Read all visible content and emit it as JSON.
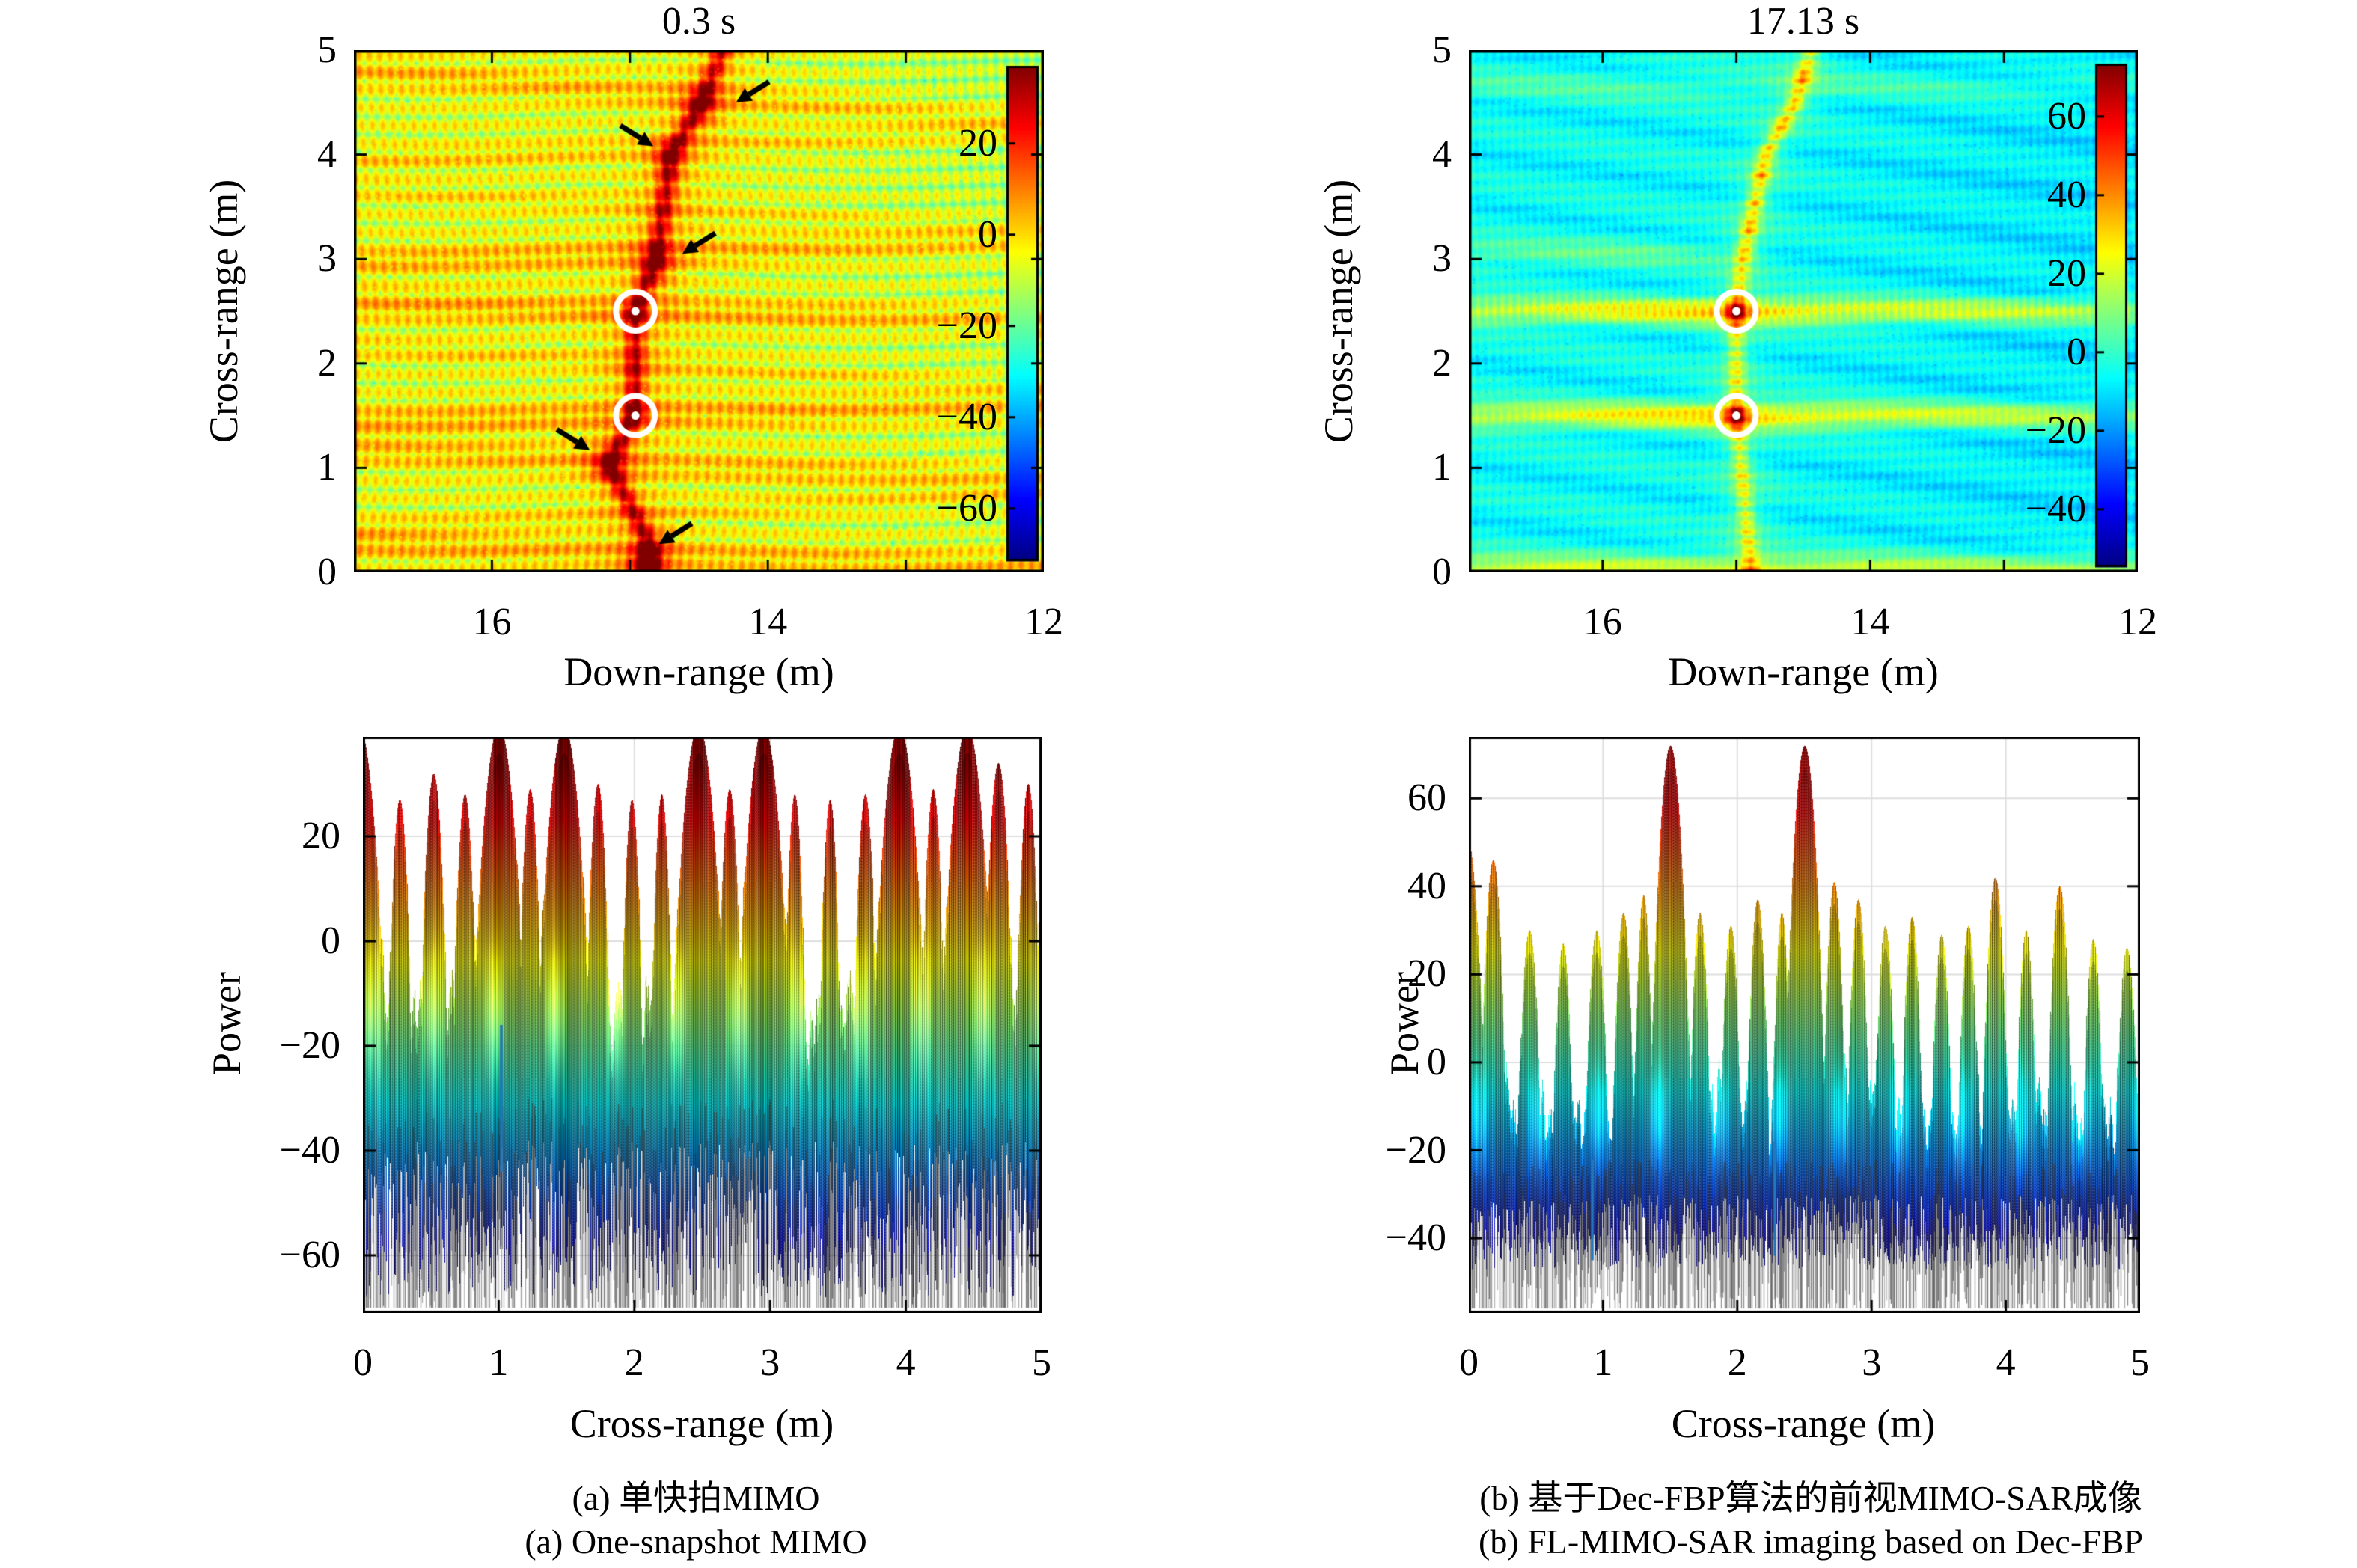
{
  "figure": {
    "background": "#ffffff",
    "colormap": "jet",
    "captions": {
      "a_zh": "(a) 单快拍MIMO",
      "a_en": "(a) One-snapshot MIMO",
      "b_zh": "(b) 基于Dec-FBP算法的前视MIMO-SAR成像",
      "b_en": "(b) FL-MIMO-SAR imaging based on Dec-FBP"
    }
  },
  "chart_data": [
    {
      "id": "sar_image_one_snapshot",
      "type": "heatmap",
      "title": "0.3 s",
      "xlabel": "Down-range (m)",
      "ylabel": "Cross-range (m)",
      "xlim": [
        17,
        12
      ],
      "ylim": [
        0,
        5
      ],
      "xticks": {
        "values": [
          16,
          14,
          12
        ],
        "labels": [
          "16",
          "14",
          "12"
        ],
        "minor": [
          15,
          13
        ]
      },
      "yticks": {
        "values": [
          5,
          4,
          3,
          2,
          1,
          0
        ],
        "labels": [
          "5",
          "4",
          "3",
          "2",
          "1",
          "0"
        ]
      },
      "colorbar": {
        "values": [
          20,
          0,
          -20,
          -40,
          -60
        ],
        "labels": [
          "20",
          "0",
          "−20",
          "−40",
          "−60"
        ],
        "vmax": 37,
        "vmin": -71.5
      },
      "targets": [
        {
          "down_range": 14.96,
          "cross_range": 2.5
        },
        {
          "down_range": 14.96,
          "cross_range": 1.5
        }
      ],
      "arrows": [
        {
          "down_range": 14.23,
          "cross_range": 4.5,
          "dir": "sw"
        },
        {
          "down_range": 14.83,
          "cross_range": 4.08,
          "dir": "se"
        },
        {
          "down_range": 14.62,
          "cross_range": 3.05,
          "dir": "sw"
        },
        {
          "down_range": 15.29,
          "cross_range": 1.17,
          "dir": "se"
        },
        {
          "down_range": 14.79,
          "cross_range": 0.27,
          "dir": "sw"
        }
      ],
      "streak_path": [
        [
          0,
          14.85
        ],
        [
          0.3,
          14.87
        ],
        [
          1.03,
          15.15
        ],
        [
          1.5,
          14.97
        ],
        [
          2.5,
          14.96
        ],
        [
          3.0,
          14.81
        ],
        [
          4.0,
          14.7
        ],
        [
          4.5,
          14.48
        ],
        [
          5.0,
          14.33
        ]
      ],
      "hot_blobs": [
        [
          14.48,
          4.46,
          15
        ],
        [
          14.71,
          3.99,
          14
        ],
        [
          14.81,
          2.94,
          14
        ],
        [
          15.15,
          1.03,
          14
        ],
        [
          14.86,
          0.18,
          13
        ],
        [
          14.9,
          0.02,
          15
        ]
      ],
      "sidelobe_rows": [
        [
          4.6,
          9,
          0.1
        ],
        [
          4.05,
          7,
          -0.06
        ],
        [
          3.5,
          5,
          0.08
        ],
        [
          3.05,
          10,
          -0.04
        ],
        [
          2.5,
          11,
          0.03
        ],
        [
          2.0,
          6,
          0.08
        ],
        [
          1.5,
          11,
          -0.03
        ],
        [
          1.05,
          9,
          0.06
        ],
        [
          0.55,
          6,
          -0.07
        ],
        [
          0.18,
          10,
          0.04
        ]
      ]
    },
    {
      "id": "sar_image_dec_fbp",
      "type": "heatmap",
      "title": "17.13 s",
      "xlabel": "Down-range (m)",
      "ylabel": "Cross-range (m)",
      "xlim": [
        17,
        12
      ],
      "ylim": [
        0,
        5
      ],
      "xticks": {
        "values": [
          16,
          14,
          12
        ],
        "labels": [
          "16",
          "14",
          "12"
        ],
        "minor": [
          15,
          13
        ]
      },
      "yticks": {
        "values": [
          5,
          4,
          3,
          2,
          1,
          0
        ],
        "labels": [
          "5",
          "4",
          "3",
          "2",
          "1",
          "0"
        ]
      },
      "colorbar": {
        "values": [
          60,
          40,
          20,
          0,
          -20,
          -40
        ],
        "labels": [
          "60",
          "40",
          "20",
          "0",
          "−20",
          "−40"
        ],
        "vmax": 73.5,
        "vmin": -54.7
      },
      "targets": [
        {
          "down_range": 15.0,
          "cross_range": 2.5
        },
        {
          "down_range": 15.0,
          "cross_range": 1.5
        }
      ],
      "streak_path": [
        [
          0,
          14.89
        ],
        [
          1.5,
          15.0
        ],
        [
          2.5,
          15.0
        ],
        [
          3.0,
          14.95
        ],
        [
          4.0,
          14.78
        ],
        [
          4.5,
          14.56
        ],
        [
          5.0,
          14.44
        ]
      ],
      "target_rows": [
        [
          2.5,
          40
        ],
        [
          1.5,
          40
        ]
      ],
      "bottom_row": [
        0.0,
        26
      ],
      "faint_rows": [
        [
          4.65,
          7,
          0
        ],
        [
          3.05,
          10,
          1
        ]
      ],
      "streak_dots": [
        4.75,
        4.5,
        4.27,
        4.03,
        3.8,
        3.55,
        3.3,
        3.07
      ]
    },
    {
      "id": "power_profile_one_snapshot",
      "type": "area",
      "xlabel": "Cross-range (m)",
      "ylabel": "Power",
      "xlim": [
        0,
        5
      ],
      "ylim": [
        -71,
        39
      ],
      "xticks": {
        "values": [
          0,
          1,
          2,
          3,
          4,
          5
        ],
        "labels": [
          "0",
          "1",
          "2",
          "3",
          "4",
          "5"
        ]
      },
      "yticks": {
        "values": [
          20,
          0,
          -20,
          -40,
          -60
        ],
        "labels": [
          "20",
          "0",
          "−20",
          "−40",
          "−60"
        ]
      },
      "grid": true,
      "color_scale": {
        "vmax": 37,
        "vmin": -71.5
      },
      "envelope_base": -14,
      "noise_floor": [
        -38,
        -68
      ],
      "blue_spikes": [
        [
          1.02,
          -16,
          -44
        ]
      ],
      "peaks": [
        [
          -0.03,
          41,
          0.2
        ],
        [
          0.27,
          27,
          0.1
        ],
        [
          0.52,
          32,
          0.11
        ],
        [
          0.75,
          28,
          0.1
        ],
        [
          1.0,
          41,
          0.2
        ],
        [
          1.23,
          29,
          0.1
        ],
        [
          1.48,
          41,
          0.2
        ],
        [
          1.73,
          30,
          0.1
        ],
        [
          1.98,
          27,
          0.09
        ],
        [
          2.2,
          28,
          0.09
        ],
        [
          2.47,
          41,
          0.2
        ],
        [
          2.7,
          29,
          0.1
        ],
        [
          2.95,
          41,
          0.2
        ],
        [
          3.18,
          28,
          0.09
        ],
        [
          3.44,
          27,
          0.09
        ],
        [
          3.7,
          28,
          0.1
        ],
        [
          3.95,
          41,
          0.2
        ],
        [
          4.2,
          29,
          0.1
        ],
        [
          4.45,
          41,
          0.2
        ],
        [
          4.68,
          34,
          0.12
        ],
        [
          4.9,
          30,
          0.1
        ],
        [
          5.04,
          28,
          0.1
        ]
      ]
    },
    {
      "id": "power_profile_dec_fbp",
      "type": "area",
      "xlabel": "Cross-range (m)",
      "ylabel": "Power",
      "xlim": [
        0,
        5
      ],
      "ylim": [
        -57,
        74
      ],
      "xticks": {
        "values": [
          0,
          1,
          2,
          3,
          4,
          5
        ],
        "labels": [
          "0",
          "1",
          "2",
          "3",
          "4",
          "5"
        ]
      },
      "yticks": {
        "values": [
          60,
          40,
          20,
          0,
          -20,
          -40
        ],
        "labels": [
          "60",
          "40",
          "20",
          "0",
          "−20",
          "−40"
        ]
      },
      "grid": true,
      "color_scale": {
        "vmax": 73.5,
        "vmin": -54.7
      },
      "envelope_base": -10,
      "noise_floor": [
        -30,
        -47
      ],
      "blue_spikes": [
        [
          0.92,
          -22,
          -45
        ],
        [
          2.28,
          -18,
          -44
        ]
      ],
      "peaks": [
        [
          -0.02,
          52,
          0.14
        ],
        [
          0.18,
          46,
          0.1
        ],
        [
          0.45,
          30,
          0.1
        ],
        [
          0.7,
          27,
          0.09
        ],
        [
          0.95,
          30,
          0.1
        ],
        [
          1.15,
          34,
          0.09
        ],
        [
          1.3,
          38,
          0.08
        ],
        [
          1.5,
          72,
          0.13
        ],
        [
          1.72,
          34,
          0.09
        ],
        [
          1.95,
          31,
          0.09
        ],
        [
          2.15,
          37,
          0.09
        ],
        [
          2.33,
          34,
          0.08
        ],
        [
          2.5,
          72,
          0.13
        ],
        [
          2.72,
          41,
          0.09
        ],
        [
          2.9,
          37,
          0.09
        ],
        [
          3.1,
          31,
          0.09
        ],
        [
          3.3,
          33,
          0.09
        ],
        [
          3.52,
          29,
          0.09
        ],
        [
          3.72,
          31,
          0.09
        ],
        [
          3.92,
          42,
          0.1
        ],
        [
          4.15,
          30,
          0.09
        ],
        [
          4.4,
          40,
          0.1
        ],
        [
          4.65,
          28,
          0.09
        ],
        [
          4.9,
          26,
          0.1
        ],
        [
          5.05,
          27,
          0.1
        ]
      ]
    }
  ]
}
